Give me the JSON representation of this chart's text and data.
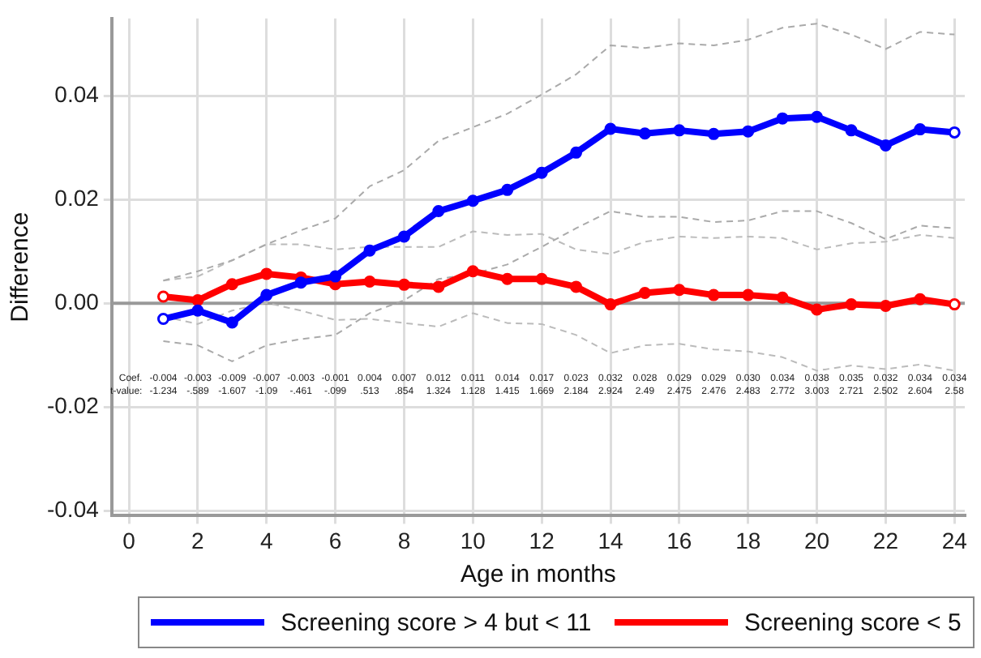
{
  "chart_data": {
    "type": "line",
    "xlabel": "Age in months",
    "ylabel": "Difference",
    "xlim": [
      -0.5,
      24.3
    ],
    "xticks": [
      0,
      2,
      4,
      6,
      8,
      10,
      12,
      14,
      16,
      18,
      20,
      22,
      24
    ],
    "ylim": [
      -0.041,
      0.055
    ],
    "yticks": [
      {
        "value": -0.04,
        "label": "-0.04"
      },
      {
        "value": -0.02,
        "label": "-0.02"
      },
      {
        "value": 0,
        "label": "0.00"
      },
      {
        "value": 0.02,
        "label": "0.02"
      },
      {
        "value": 0.04,
        "label": "0.04"
      }
    ],
    "grid": true,
    "legend": "bottom",
    "marker": "circle",
    "x": [
      1,
      2,
      3,
      4,
      5,
      6,
      7,
      8,
      9,
      10,
      11,
      12,
      13,
      14,
      15,
      16,
      17,
      18,
      19,
      20,
      21,
      22,
      23,
      24
    ],
    "series": [
      {
        "color": "#aaaaaa",
        "line_style": "dashed",
        "marker": "none",
        "values": [
          0.0044,
          0.0062,
          0.0083,
          0.0114,
          0.0141,
          0.0164,
          0.0226,
          0.0257,
          0.0314,
          0.034,
          0.0366,
          0.0403,
          0.0442,
          0.0498,
          0.0493,
          0.0502,
          0.0498,
          0.0509,
          0.0532,
          0.054,
          0.0519,
          0.0491,
          0.0524,
          0.0519
        ]
      },
      {
        "color": "#aaaaaa",
        "line_style": "dashed",
        "marker": "none",
        "values": [
          -0.0073,
          -0.0081,
          -0.0112,
          -0.0081,
          -0.0069,
          -0.0061,
          -0.0019,
          0.0006,
          0.0047,
          0.0057,
          0.0075,
          0.0109,
          0.0145,
          0.0178,
          0.0167,
          0.0167,
          0.0157,
          0.016,
          0.0178,
          0.0178,
          0.0155,
          0.0124,
          0.015,
          0.0145
        ]
      },
      {
        "color": "#bbbbbb",
        "line_style": "dashed",
        "marker": "none",
        "values": [
          0.0044,
          0.0052,
          0.0083,
          0.0114,
          0.0114,
          0.0104,
          0.0109,
          0.0109,
          0.0109,
          0.0139,
          0.0132,
          0.0134,
          0.0104,
          0.0095,
          0.0119,
          0.0129,
          0.0126,
          0.0129,
          0.0126,
          0.0104,
          0.0116,
          0.0119,
          0.0132,
          0.0126
        ]
      },
      {
        "color": "#bbbbbb",
        "line_style": "dashed",
        "marker": "none",
        "values": [
          -0.0025,
          -0.004,
          -0.0014,
          0.0001,
          -0.0014,
          -0.0032,
          -0.003,
          -0.0038,
          -0.0045,
          -0.0019,
          -0.0038,
          -0.004,
          -0.0061,
          -0.0096,
          -0.0081,
          -0.0078,
          -0.0089,
          -0.0093,
          -0.0104,
          -0.013,
          -0.012,
          -0.0127,
          -0.0118,
          -0.013
        ]
      },
      {
        "name": "Screening score > 4 but < 11",
        "color": "#0000ff",
        "values": [
          -0.003,
          -0.0014,
          -0.0037,
          0.0016,
          0.004,
          0.0052,
          0.0102,
          0.0129,
          0.0178,
          0.0198,
          0.0219,
          0.0252,
          0.0291,
          0.0337,
          0.0328,
          0.0334,
          0.0327,
          0.0332,
          0.0357,
          0.036,
          0.0334,
          0.0305,
          0.0336,
          0.033
        ]
      },
      {
        "name": "Screening score < 5",
        "color": "#ff0000",
        "values": [
          0.0013,
          0.0006,
          0.0037,
          0.0057,
          0.005,
          0.0037,
          0.0042,
          0.0036,
          0.0032,
          0.0062,
          0.0047,
          0.0047,
          0.0032,
          -0.0002,
          0.002,
          0.0026,
          0.0016,
          0.0016,
          0.0011,
          -0.0012,
          -0.0002,
          -0.0005,
          0.0008,
          -0.0002
        ]
      }
    ],
    "ref_lines": [
      {
        "axis": "y",
        "value": 0,
        "color": "#999999"
      }
    ],
    "annotations": [
      "Coef.",
      "-0.004",
      "-0.003",
      "-0.009",
      "-0.007",
      "-0.003",
      "-0.001",
      "0.004",
      "0.007",
      "0.012",
      "0.011",
      "0.014",
      "0.017",
      "0.023",
      "0.032",
      "0.028",
      "0.029",
      "0.029",
      "0.030",
      "0.034",
      "0.038",
      "0.035",
      "0.032",
      "0.034",
      "0.034",
      "t-value:",
      "-1.234",
      "-.589",
      "-1.607",
      "-1.09",
      "-.461",
      "-.099",
      ".513",
      ".854",
      "1.324",
      "1.128",
      "1.415",
      "1.669",
      "2.184",
      "2.924",
      "2.49",
      "2.475",
      "2.476",
      "2.483",
      "2.772",
      "3.003",
      "2.721",
      "2.502",
      "2.604",
      "2.58"
    ]
  }
}
